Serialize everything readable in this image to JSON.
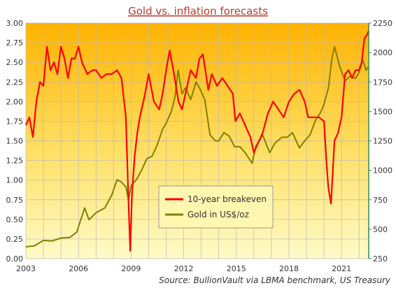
{
  "chart_data": {
    "type": "line",
    "title": "Gold vs. inflation forecasts",
    "source": "Source: BullionVault via LBMA benchmark, US Treasury",
    "x_range": [
      2003.0,
      2022.55
    ],
    "x_ticks": [
      "2003",
      "2006",
      "2009",
      "2012",
      "2015",
      "2018",
      "2021"
    ],
    "y_left": {
      "range": [
        0,
        3
      ],
      "ticks": [
        "0.00",
        "0.25",
        "0.50",
        "0.75",
        "1.00",
        "1.25",
        "1.50",
        "1.75",
        "2.00",
        "2.25",
        "2.50",
        "2.75",
        "3.00"
      ]
    },
    "y_right": {
      "range": [
        250,
        2250
      ],
      "ticks": [
        "250",
        "500",
        "750",
        "1000",
        "1250",
        "1500",
        "1750",
        "2000",
        "2250"
      ]
    },
    "grid": true,
    "legend_position": "center",
    "colors": {
      "breakeven": "#ff0000",
      "gold": "#808000",
      "bg_top": "#ffb300",
      "bg_bottom": "#fffbc8"
    },
    "series": [
      {
        "name": "10-year breakeven",
        "axis": "left",
        "x": [
          2003.0,
          2003.2,
          2003.4,
          2003.6,
          2003.8,
          2004.0,
          2004.2,
          2004.4,
          2004.6,
          2004.8,
          2005.0,
          2005.2,
          2005.4,
          2005.6,
          2005.8,
          2006.0,
          2006.2,
          2006.5,
          2006.8,
          2007.0,
          2007.3,
          2007.6,
          2007.9,
          2008.2,
          2008.45,
          2008.7,
          2008.85,
          2008.95,
          2009.05,
          2009.2,
          2009.35,
          2009.5,
          2009.8,
          2010.0,
          2010.3,
          2010.6,
          2010.8,
          2011.0,
          2011.2,
          2011.45,
          2011.7,
          2011.9,
          2012.1,
          2012.4,
          2012.7,
          2012.9,
          2013.1,
          2013.4,
          2013.6,
          2013.9,
          2014.2,
          2014.5,
          2014.8,
          2014.95,
          2015.2,
          2015.5,
          2015.8,
          2016.0,
          2016.2,
          2016.5,
          2016.8,
          2017.1,
          2017.4,
          2017.7,
          2018.0,
          2018.3,
          2018.6,
          2018.9,
          2019.1,
          2019.4,
          2019.7,
          2020.0,
          2020.15,
          2020.25,
          2020.4,
          2020.6,
          2020.8,
          2021.0,
          2021.2,
          2021.4,
          2021.6,
          2021.8,
          2022.0,
          2022.15,
          2022.3,
          2022.45,
          2022.55
        ],
        "values": [
          1.7,
          1.8,
          1.55,
          2.0,
          2.25,
          2.2,
          2.7,
          2.4,
          2.5,
          2.35,
          2.7,
          2.55,
          2.3,
          2.55,
          2.55,
          2.7,
          2.5,
          2.35,
          2.4,
          2.4,
          2.3,
          2.35,
          2.35,
          2.4,
          2.3,
          1.8,
          0.75,
          0.1,
          0.8,
          1.3,
          1.6,
          1.8,
          2.1,
          2.35,
          2.0,
          1.9,
          2.1,
          2.4,
          2.65,
          2.35,
          2.0,
          1.9,
          2.1,
          2.4,
          2.3,
          2.55,
          2.6,
          2.15,
          2.35,
          2.2,
          2.3,
          2.2,
          2.1,
          1.75,
          1.85,
          1.7,
          1.55,
          1.35,
          1.45,
          1.6,
          1.85,
          2.0,
          1.9,
          1.8,
          2.0,
          2.1,
          2.15,
          2.0,
          1.8,
          1.8,
          1.8,
          1.75,
          1.2,
          0.9,
          0.7,
          1.5,
          1.6,
          1.8,
          2.35,
          2.4,
          2.3,
          2.4,
          2.4,
          2.5,
          2.8,
          2.85,
          2.9
        ]
      },
      {
        "name": "Gold in US$/oz",
        "axis": "right",
        "x": [
          2003.0,
          2003.5,
          2004.0,
          2004.5,
          2005.0,
          2005.5,
          2005.9,
          2006.35,
          2006.6,
          2007.0,
          2007.5,
          2007.9,
          2008.2,
          2008.45,
          2008.7,
          2008.85,
          2009.0,
          2009.3,
          2009.6,
          2009.9,
          2010.2,
          2010.5,
          2010.8,
          2011.0,
          2011.3,
          2011.5,
          2011.68,
          2011.9,
          2012.1,
          2012.4,
          2012.7,
          2012.9,
          2013.2,
          2013.5,
          2013.8,
          2014.0,
          2014.3,
          2014.6,
          2014.9,
          2015.2,
          2015.5,
          2015.9,
          2016.1,
          2016.5,
          2016.9,
          2017.2,
          2017.6,
          2017.9,
          2018.2,
          2018.6,
          2018.9,
          2019.2,
          2019.5,
          2019.8,
          2020.0,
          2020.25,
          2020.45,
          2020.6,
          2020.9,
          2021.2,
          2021.5,
          2021.8,
          2022.0,
          2022.2,
          2022.4,
          2022.55
        ],
        "values": [
          350,
          360,
          405,
          400,
          425,
          430,
          475,
          680,
          580,
          640,
          680,
          790,
          920,
          900,
          860,
          750,
          870,
          920,
          1000,
          1100,
          1120,
          1220,
          1350,
          1400,
          1500,
          1620,
          1850,
          1650,
          1700,
          1600,
          1750,
          1700,
          1600,
          1300,
          1250,
          1250,
          1320,
          1290,
          1200,
          1200,
          1150,
          1060,
          1200,
          1300,
          1150,
          1230,
          1280,
          1280,
          1320,
          1190,
          1250,
          1300,
          1420,
          1490,
          1560,
          1700,
          1950,
          2050,
          1880,
          1760,
          1800,
          1780,
          1830,
          1940,
          1850,
          1880
        ]
      }
    ]
  }
}
